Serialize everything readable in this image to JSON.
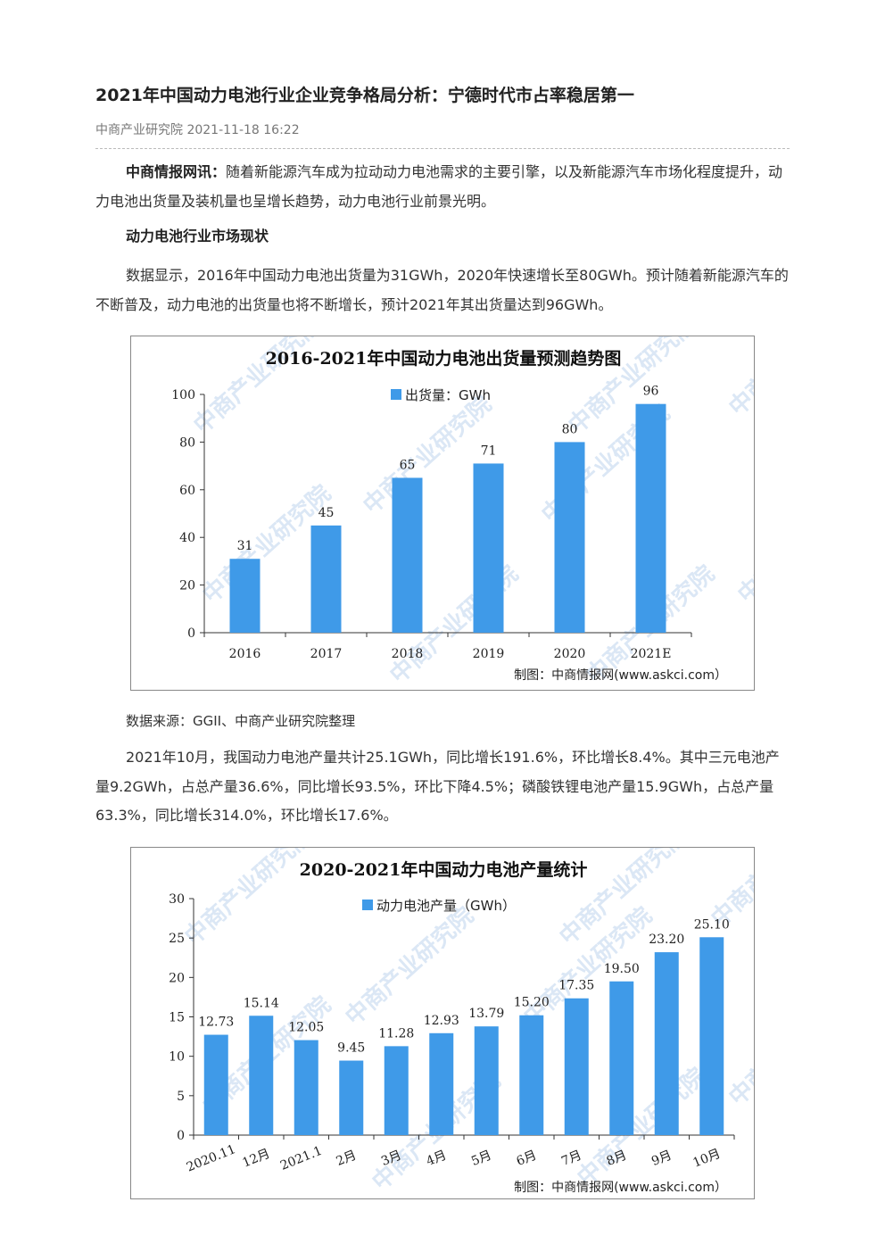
{
  "article": {
    "title": "2021年中国动力电池行业企业竞争格局分析：宁德时代市占率稳居第一",
    "meta": "中商产业研究院 2021-11-18 16:22",
    "intro_lead": "中商情报网讯：",
    "intro_text": "随着新能源汽车成为拉动动力电池需求的主要引擎，以及新能源汽车市场化程度提升，动力电池出货量及装机量也呈增长趋势，动力电池行业前景光明。",
    "section_heading": "动力电池行业市场现状",
    "para1": "数据显示，2016年中国动力电池出货量为31GWh，2020年快速增长至80GWh。预计随着新能源汽车的不断普及，动力电池的出货量也将不断增长，预计2021年其出货量达到96GWh。",
    "source": "数据来源：GGII、中商产业研究院整理",
    "para2": "2021年10月，我国动力电池产量共计25.1GWh，同比增长191.6%，环比增长8.4%。其中三元电池产量9.2GWh，占总产量36.6%，同比增长93.5%，环比下降4.5%；磷酸铁锂电池产量15.9GWh，占总产量63.3%，同比增长314.0%，环比增长17.6%。"
  },
  "watermark_text": "中商产业研究院",
  "colors": {
    "bar": "#3f9ae8",
    "axis": "#333333",
    "watermark": "#dbe7f5"
  },
  "chart_data": [
    {
      "type": "bar",
      "title": "2016-2021年中国动力电池出货量预测趋势图",
      "legend": "出货量：GWh",
      "categories": [
        "2016",
        "2017",
        "2018",
        "2019",
        "2020",
        "2021E"
      ],
      "series": [
        {
          "name": "出货量：GWh",
          "values": [
            31,
            45,
            65,
            71,
            80,
            96
          ]
        }
      ],
      "value_labels": [
        "31",
        "45",
        "65",
        "71",
        "80",
        "96"
      ],
      "yticks": [
        0,
        20,
        40,
        60,
        80,
        100
      ],
      "ylim": [
        0,
        100
      ],
      "xlabel": "",
      "ylabel": "",
      "credit": "制图：中商情报网(www.askci.com）",
      "grid": false,
      "legend_position": "top"
    },
    {
      "type": "bar",
      "title": "2020-2021年中国动力电池产量统计",
      "legend": "动力电池产量（GWh）",
      "categories": [
        "2020.11",
        "12月",
        "2021.1",
        "2月",
        "3月",
        "4月",
        "5月",
        "6月",
        "7月",
        "8月",
        "9月",
        "10月"
      ],
      "series": [
        {
          "name": "动力电池产量（GWh）",
          "values": [
            12.73,
            15.14,
            12.05,
            9.45,
            11.28,
            12.93,
            13.79,
            15.2,
            17.35,
            19.5,
            23.2,
            25.1
          ]
        }
      ],
      "value_labels": [
        "12.73",
        "15.14",
        "12.05",
        "9.45",
        "11.28",
        "12.93",
        "13.79",
        "15.20",
        "17.35",
        "19.50",
        "23.20",
        "25.10"
      ],
      "yticks": [
        0,
        5,
        10,
        15,
        20,
        25,
        30
      ],
      "ylim": [
        0,
        30
      ],
      "xlabel": "",
      "ylabel": "",
      "credit": "制图：中商情报网(www.askci.com）",
      "grid": false,
      "legend_position": "top"
    }
  ]
}
